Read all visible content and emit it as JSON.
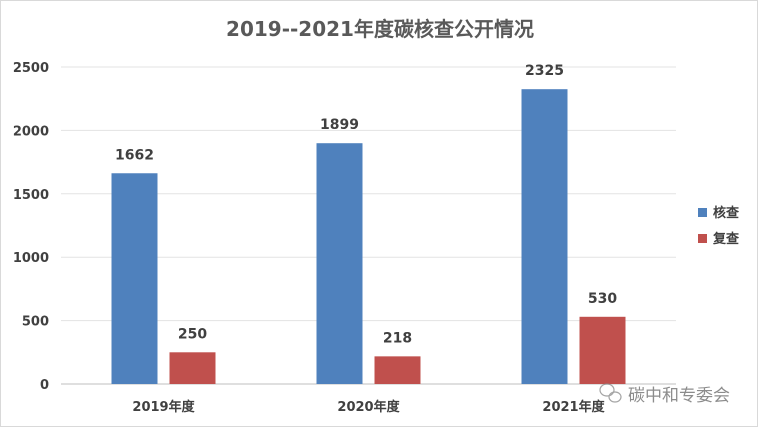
{
  "chart_data": {
    "type": "bar",
    "title": "2019--2021年度碳核查公开情况",
    "categories": [
      "2019年度",
      "2020年度",
      "2021年度"
    ],
    "series": [
      {
        "name": "核查",
        "values": [
          1662,
          1899,
          2325
        ],
        "color": "#4f81bd"
      },
      {
        "name": "复查",
        "values": [
          250,
          218,
          530
        ],
        "color": "#c0504d"
      }
    ],
    "ylim": [
      0,
      2500
    ],
    "yticks": [
      0,
      500,
      1000,
      1500,
      2000,
      2500
    ],
    "grid": true,
    "legend": "right",
    "data_labels": true
  },
  "watermark": {
    "text": "碳中和专委会",
    "icon": "wechat-icon"
  }
}
